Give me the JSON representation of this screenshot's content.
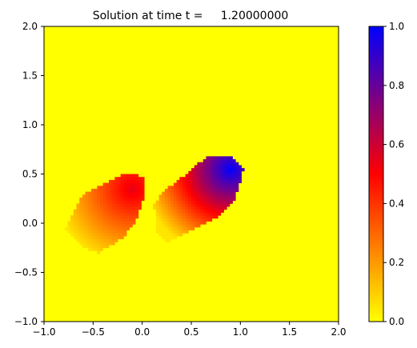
{
  "chart_data": {
    "type": "heatmap",
    "title": "Solution at time t =     1.20000000",
    "xlabel": "",
    "ylabel": "",
    "xlim": [
      -1.0,
      2.0
    ],
    "ylim": [
      -1.0,
      2.0
    ],
    "x_ticks": [
      "−1.0",
      "−0.5",
      "0.0",
      "0.5",
      "1.0",
      "1.5",
      "2.0"
    ],
    "y_ticks": [
      "−1.0",
      "−0.5",
      "0.0",
      "0.5",
      "1.0",
      "1.5",
      "2.0"
    ],
    "x_tick_values": [
      -1.0,
      -0.5,
      0.0,
      0.5,
      1.0,
      1.5,
      2.0
    ],
    "y_tick_values": [
      -1.0,
      -0.5,
      0.0,
      0.5,
      1.0,
      1.5,
      2.0
    ],
    "grid": false,
    "background_value": 0.0,
    "colormap": [
      "#ffff00",
      "#ff8000",
      "#ff0000",
      "#800080",
      "#0000ff"
    ],
    "colorbar": {
      "range": [
        0.0,
        1.0
      ],
      "ticks": [
        "0.0",
        "0.2",
        "0.4",
        "0.6",
        "0.8",
        "1.0"
      ],
      "tick_values": [
        0.0,
        0.2,
        0.4,
        0.6,
        0.8,
        1.0
      ]
    },
    "blobs": [
      {
        "name": "left blob",
        "outline": [
          [
            -0.78,
            -0.05
          ],
          [
            -0.6,
            0.3
          ],
          [
            -0.4,
            0.4
          ],
          [
            -0.2,
            0.5
          ],
          [
            0.03,
            0.48
          ],
          [
            0.03,
            0.3
          ],
          [
            -0.05,
            0.05
          ],
          [
            -0.2,
            -0.15
          ],
          [
            -0.45,
            -0.3
          ],
          [
            -0.6,
            -0.25
          ]
        ],
        "center": [
          -0.1,
          0.35
        ],
        "radius": 0.85,
        "peak": 0.55
      },
      {
        "name": "right blob",
        "outline": [
          [
            0.15,
            -0.1
          ],
          [
            0.12,
            0.2
          ],
          [
            0.25,
            0.35
          ],
          [
            0.45,
            0.5
          ],
          [
            0.65,
            0.67
          ],
          [
            0.92,
            0.67
          ],
          [
            1.03,
            0.55
          ],
          [
            0.95,
            0.25
          ],
          [
            0.75,
            0.05
          ],
          [
            0.45,
            -0.1
          ],
          [
            0.25,
            -0.2
          ]
        ],
        "center": [
          0.9,
          0.55
        ],
        "radius": 0.95,
        "peak": 1.0
      }
    ]
  }
}
